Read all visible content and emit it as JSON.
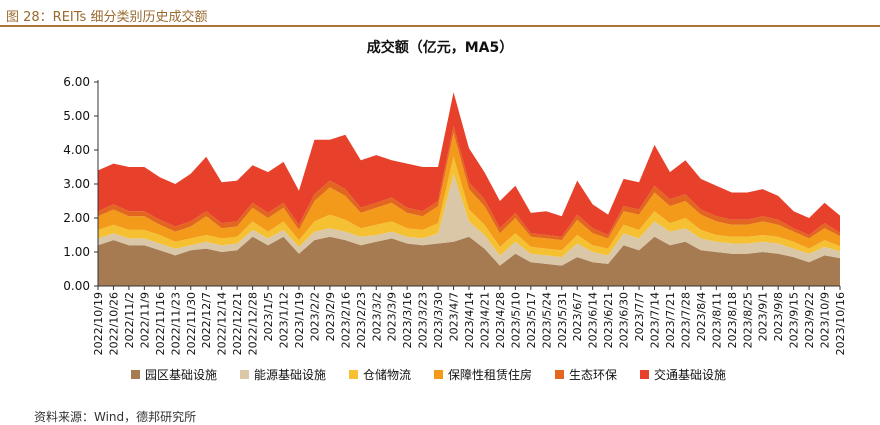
{
  "figure_caption": "图 28：REITs 细分类别历史成交额",
  "source_note": "资料来源：Wind，德邦研究所",
  "chart_data": {
    "type": "area",
    "stacked": true,
    "title": "成交额（亿元，MA5）",
    "xlabel": "",
    "ylabel": "",
    "ylim": [
      0,
      6
    ],
    "yticks": [
      "0.00",
      "1.00",
      "2.00",
      "3.00",
      "4.00",
      "5.00",
      "6.00"
    ],
    "grid": false,
    "legend_position": "bottom",
    "x": [
      "2022/10/19",
      "2022/10/26",
      "2022/11/2",
      "2022/11/9",
      "2022/11/16",
      "2022/11/23",
      "2022/11/30",
      "2022/12/7",
      "2022/12/14",
      "2022/12/21",
      "2022/12/28",
      "2023/1/5",
      "2023/1/12",
      "2023/1/19",
      "2023/2/2",
      "2023/2/9",
      "2023/2/16",
      "2023/2/23",
      "2023/3/2",
      "2023/3/9",
      "2023/3/16",
      "2023/3/23",
      "2023/3/30",
      "2023/4/7",
      "2023/4/14",
      "2023/4/21",
      "2023/4/28",
      "2023/5/10",
      "2023/5/17",
      "2023/5/24",
      "2023/5/31",
      "2023/6/7",
      "2023/6/14",
      "2023/6/21",
      "2023/6/30",
      "2023/7/7",
      "2023/7/14",
      "2023/7/21",
      "2023/7/28",
      "2023/8/4",
      "2023/8/11",
      "2023/8/18",
      "2023/8/25",
      "2023/9/1",
      "2023/9/8",
      "2023/9/15",
      "2023/9/22",
      "2023/10/9",
      "2023/10/16"
    ],
    "series": [
      {
        "name": "园区基础设施",
        "color": "#a67b52",
        "values": [
          1.2,
          1.35,
          1.2,
          1.2,
          1.05,
          0.9,
          1.05,
          1.1,
          1.0,
          1.05,
          1.45,
          1.2,
          1.45,
          0.95,
          1.35,
          1.45,
          1.35,
          1.2,
          1.3,
          1.4,
          1.25,
          1.2,
          1.25,
          1.3,
          1.45,
          1.1,
          0.6,
          0.95,
          0.7,
          0.65,
          0.6,
          0.85,
          0.7,
          0.65,
          1.2,
          1.05,
          1.45,
          1.2,
          1.3,
          1.05,
          1.0,
          0.95,
          0.95,
          1.0,
          0.95,
          0.85,
          0.7,
          0.9,
          0.82
        ]
      },
      {
        "name": "能源基础设施",
        "color": "#d9c7a8",
        "values": [
          0.2,
          0.2,
          0.2,
          0.2,
          0.2,
          0.2,
          0.15,
          0.2,
          0.2,
          0.2,
          0.2,
          0.2,
          0.2,
          0.2,
          0.25,
          0.25,
          0.25,
          0.25,
          0.2,
          0.2,
          0.2,
          0.2,
          0.3,
          2.0,
          0.45,
          0.4,
          0.3,
          0.35,
          0.25,
          0.25,
          0.25,
          0.4,
          0.3,
          0.25,
          0.35,
          0.35,
          0.45,
          0.4,
          0.4,
          0.35,
          0.3,
          0.3,
          0.3,
          0.3,
          0.3,
          0.25,
          0.25,
          0.25,
          0.2
        ]
      },
      {
        "name": "仓储物流",
        "color": "#f5c132",
        "values": [
          0.25,
          0.25,
          0.25,
          0.25,
          0.25,
          0.2,
          0.2,
          0.2,
          0.2,
          0.2,
          0.25,
          0.2,
          0.25,
          0.2,
          0.3,
          0.4,
          0.35,
          0.25,
          0.3,
          0.3,
          0.25,
          0.25,
          0.3,
          0.5,
          0.35,
          0.3,
          0.25,
          0.25,
          0.2,
          0.2,
          0.2,
          0.25,
          0.2,
          0.2,
          0.25,
          0.25,
          0.3,
          0.25,
          0.3,
          0.25,
          0.2,
          0.2,
          0.2,
          0.2,
          0.2,
          0.2,
          0.15,
          0.2,
          0.15
        ]
      },
      {
        "name": "保障性租赁住房",
        "color": "#f39a1b",
        "values": [
          0.4,
          0.45,
          0.4,
          0.4,
          0.3,
          0.3,
          0.35,
          0.55,
          0.3,
          0.3,
          0.4,
          0.4,
          0.4,
          0.3,
          0.6,
          0.8,
          0.7,
          0.45,
          0.5,
          0.55,
          0.45,
          0.4,
          0.5,
          0.7,
          0.6,
          0.55,
          0.4,
          0.45,
          0.3,
          0.3,
          0.3,
          0.45,
          0.35,
          0.3,
          0.4,
          0.45,
          0.55,
          0.5,
          0.5,
          0.45,
          0.4,
          0.35,
          0.35,
          0.4,
          0.35,
          0.3,
          0.3,
          0.35,
          0.3
        ]
      },
      {
        "name": "生态环保",
        "color": "#e2661f",
        "values": [
          0.15,
          0.15,
          0.15,
          0.15,
          0.15,
          0.15,
          0.15,
          0.15,
          0.15,
          0.15,
          0.15,
          0.15,
          0.15,
          0.15,
          0.2,
          0.2,
          0.2,
          0.15,
          0.15,
          0.15,
          0.15,
          0.15,
          0.15,
          0.2,
          0.2,
          0.2,
          0.15,
          0.15,
          0.1,
          0.1,
          0.1,
          0.15,
          0.15,
          0.1,
          0.15,
          0.15,
          0.2,
          0.2,
          0.2,
          0.15,
          0.15,
          0.15,
          0.15,
          0.15,
          0.15,
          0.1,
          0.1,
          0.15,
          0.1
        ]
      },
      {
        "name": "交通基础设施",
        "color": "#e8412b",
        "values": [
          1.2,
          1.2,
          1.3,
          1.3,
          1.25,
          1.25,
          1.4,
          1.6,
          1.2,
          1.2,
          1.1,
          1.2,
          1.2,
          1.0,
          1.6,
          1.2,
          1.6,
          1.4,
          1.4,
          1.1,
          1.3,
          1.3,
          1.0,
          1.0,
          1.0,
          0.8,
          0.8,
          0.8,
          0.6,
          0.7,
          0.6,
          1.0,
          0.7,
          0.6,
          0.8,
          0.8,
          1.2,
          0.8,
          1.0,
          0.9,
          0.9,
          0.8,
          0.8,
          0.8,
          0.7,
          0.5,
          0.5,
          0.6,
          0.5
        ]
      }
    ]
  }
}
